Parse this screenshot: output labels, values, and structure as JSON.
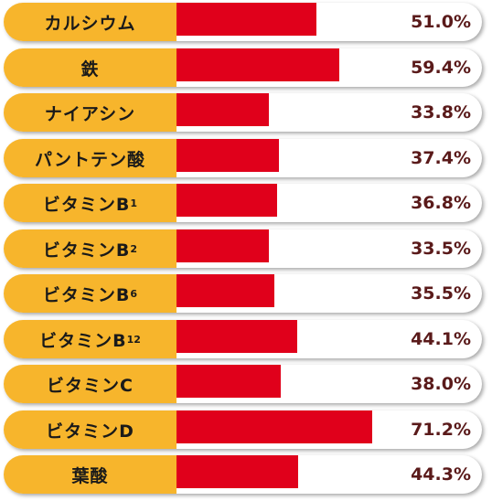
{
  "chart_data": {
    "type": "bar",
    "orientation": "horizontal",
    "categories": [
      "カルシウム",
      "鉄",
      "ナイアシン",
      "パントテン酸",
      "ビタミンB",
      "ビタミンB",
      "ビタミンB",
      "ビタミンB",
      "ビタミンC",
      "ビタミンD",
      "葉酸"
    ],
    "subscripts": [
      "",
      "",
      "",
      "",
      "1",
      "2",
      "6",
      "12",
      "",
      "",
      ""
    ],
    "values": [
      51.0,
      59.4,
      33.8,
      37.4,
      36.8,
      33.5,
      35.5,
      44.1,
      38.0,
      71.2,
      44.3
    ],
    "value_labels": [
      "51.0%",
      "59.4%",
      "33.8%",
      "37.4%",
      "36.8%",
      "33.5%",
      "35.5%",
      "44.1%",
      "38.0%",
      "71.2%",
      "44.3%"
    ],
    "unit": "%",
    "xlim": [
      0,
      100
    ],
    "colors": {
      "bar": "#e0001b",
      "label_bg": "#f7b52c",
      "value_text": "#5a1a1a"
    }
  }
}
